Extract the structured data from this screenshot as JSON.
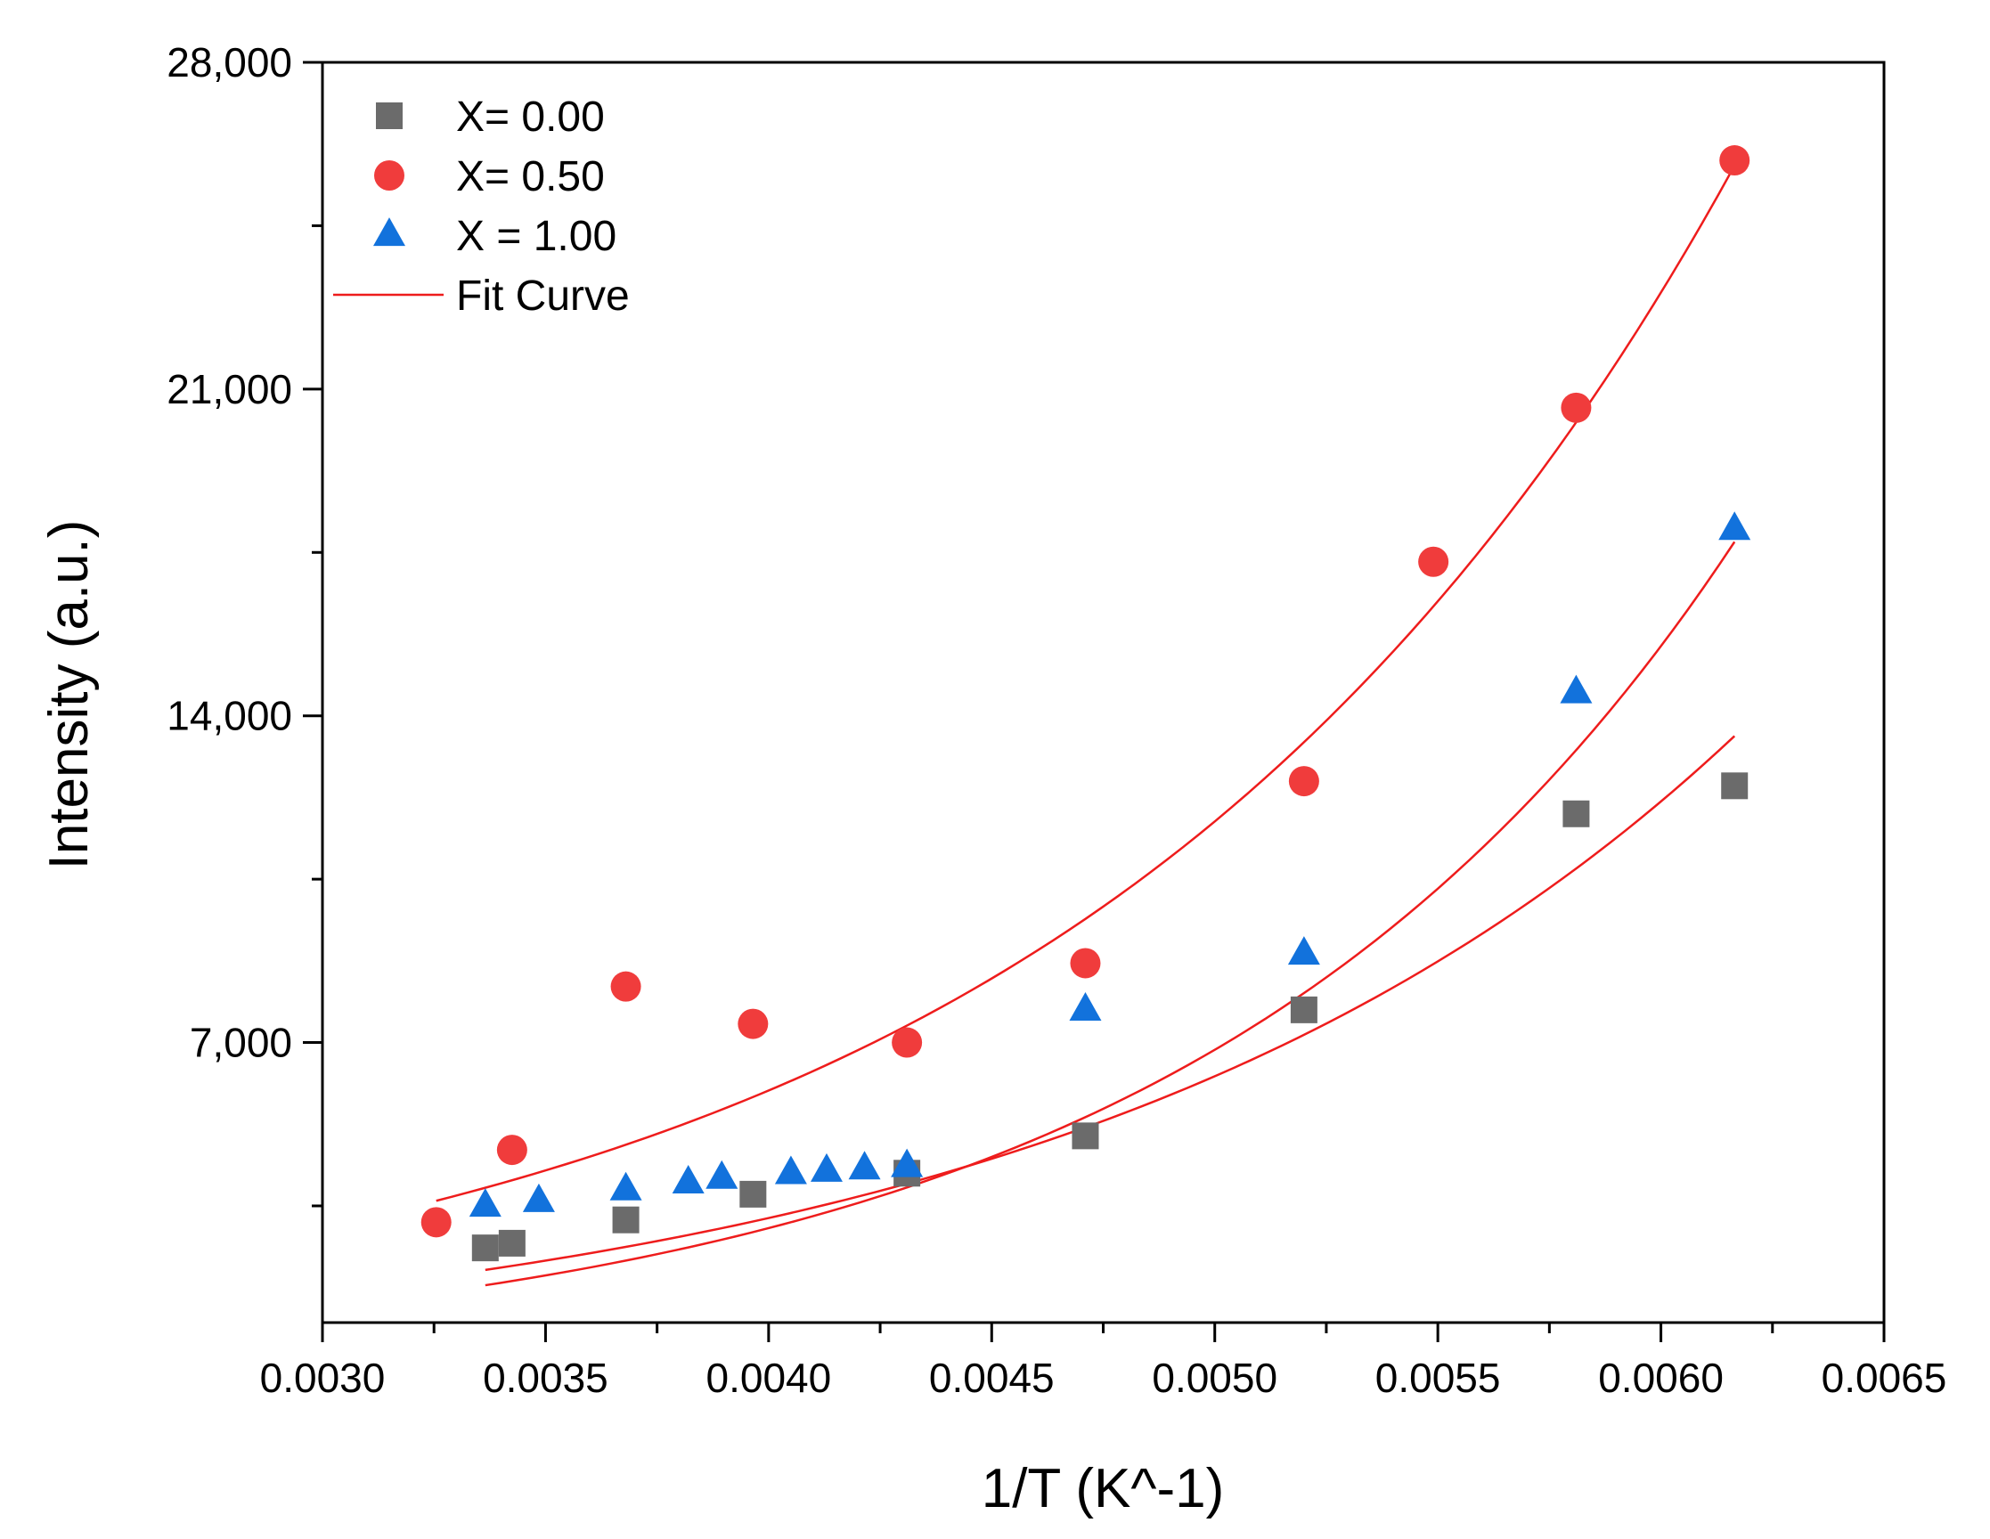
{
  "chart_data": {
    "type": "scatter",
    "title": "",
    "xlabel": "1/T (K^-1)",
    "ylabel": "Intensity (a.u.)",
    "xlim": [
      0.003,
      0.0065
    ],
    "ylim": [
      1000,
      28000
    ],
    "x_ticks": [
      {
        "value": 0.003,
        "label": "0.0030"
      },
      {
        "value": 0.0035,
        "label": "0.0035"
      },
      {
        "value": 0.004,
        "label": "0.0040"
      },
      {
        "value": 0.0045,
        "label": "0.0045"
      },
      {
        "value": 0.005,
        "label": "0.0050"
      },
      {
        "value": 0.0055,
        "label": "0.0055"
      },
      {
        "value": 0.006,
        "label": "0.0060"
      },
      {
        "value": 0.0065,
        "label": "0.0065"
      }
    ],
    "y_ticks": [
      {
        "value": 7000,
        "label": "7,000"
      },
      {
        "value": 14000,
        "label": "14,000"
      },
      {
        "value": 21000,
        "label": "21,000"
      },
      {
        "value": 28000,
        "label": "28,000"
      }
    ],
    "grid": false,
    "legend_position": "top-left",
    "series": [
      {
        "name": "X= 0.00",
        "marker": "square",
        "color": "#6b6b6b",
        "points": [
          {
            "x": 0.003365,
            "y": 2600
          },
          {
            "x": 0.003425,
            "y": 2700
          },
          {
            "x": 0.00368,
            "y": 3200
          },
          {
            "x": 0.003965,
            "y": 3750
          },
          {
            "x": 0.00431,
            "y": 4200
          },
          {
            "x": 0.00471,
            "y": 5000
          },
          {
            "x": 0.0052,
            "y": 7700
          },
          {
            "x": 0.00581,
            "y": 11900
          },
          {
            "x": 0.006165,
            "y": 12500
          }
        ],
        "fit": {
          "model": "exponential",
          "x_start": 0.003365,
          "x_end": 0.006165,
          "a": 229.8,
          "b": 661.5
        }
      },
      {
        "name": "X= 0.50",
        "marker": "circle",
        "color": "#f03c3c",
        "points": [
          {
            "x": 0.003255,
            "y": 3150
          },
          {
            "x": 0.003425,
            "y": 4700
          },
          {
            "x": 0.00368,
            "y": 8200
          },
          {
            "x": 0.003965,
            "y": 7400
          },
          {
            "x": 0.00431,
            "y": 7000
          },
          {
            "x": 0.00471,
            "y": 8700
          },
          {
            "x": 0.0052,
            "y": 12600
          },
          {
            "x": 0.00549,
            "y": 17300
          },
          {
            "x": 0.00581,
            "y": 20600
          },
          {
            "x": 0.006165,
            "y": 25900
          }
        ],
        "fit": {
          "model": "exponential",
          "x_start": 0.003255,
          "x_end": 0.006165,
          "a": 400.2,
          "b": 675.7
        }
      },
      {
        "name": "X = 1.00",
        "marker": "triangle",
        "color": "#1272dc",
        "points": [
          {
            "x": 0.003365,
            "y": 3500
          },
          {
            "x": 0.003485,
            "y": 3600
          },
          {
            "x": 0.00368,
            "y": 3850
          },
          {
            "x": 0.00382,
            "y": 4000
          },
          {
            "x": 0.003895,
            "y": 4100
          },
          {
            "x": 0.00405,
            "y": 4200
          },
          {
            "x": 0.00413,
            "y": 4250
          },
          {
            "x": 0.004215,
            "y": 4300
          },
          {
            "x": 0.00431,
            "y": 4350
          },
          {
            "x": 0.00471,
            "y": 7700
          },
          {
            "x": 0.0052,
            "y": 8900
          },
          {
            "x": 0.00581,
            "y": 14500
          },
          {
            "x": 0.006165,
            "y": 18000
          }
        ],
        "fit": {
          "model": "exponential",
          "x_start": 0.003365,
          "x_end": 0.006165,
          "a": 115.2,
          "b": 816.9
        }
      }
    ],
    "fit_legend_label": "Fit Curve",
    "fit_color": "#ee1c1c"
  }
}
